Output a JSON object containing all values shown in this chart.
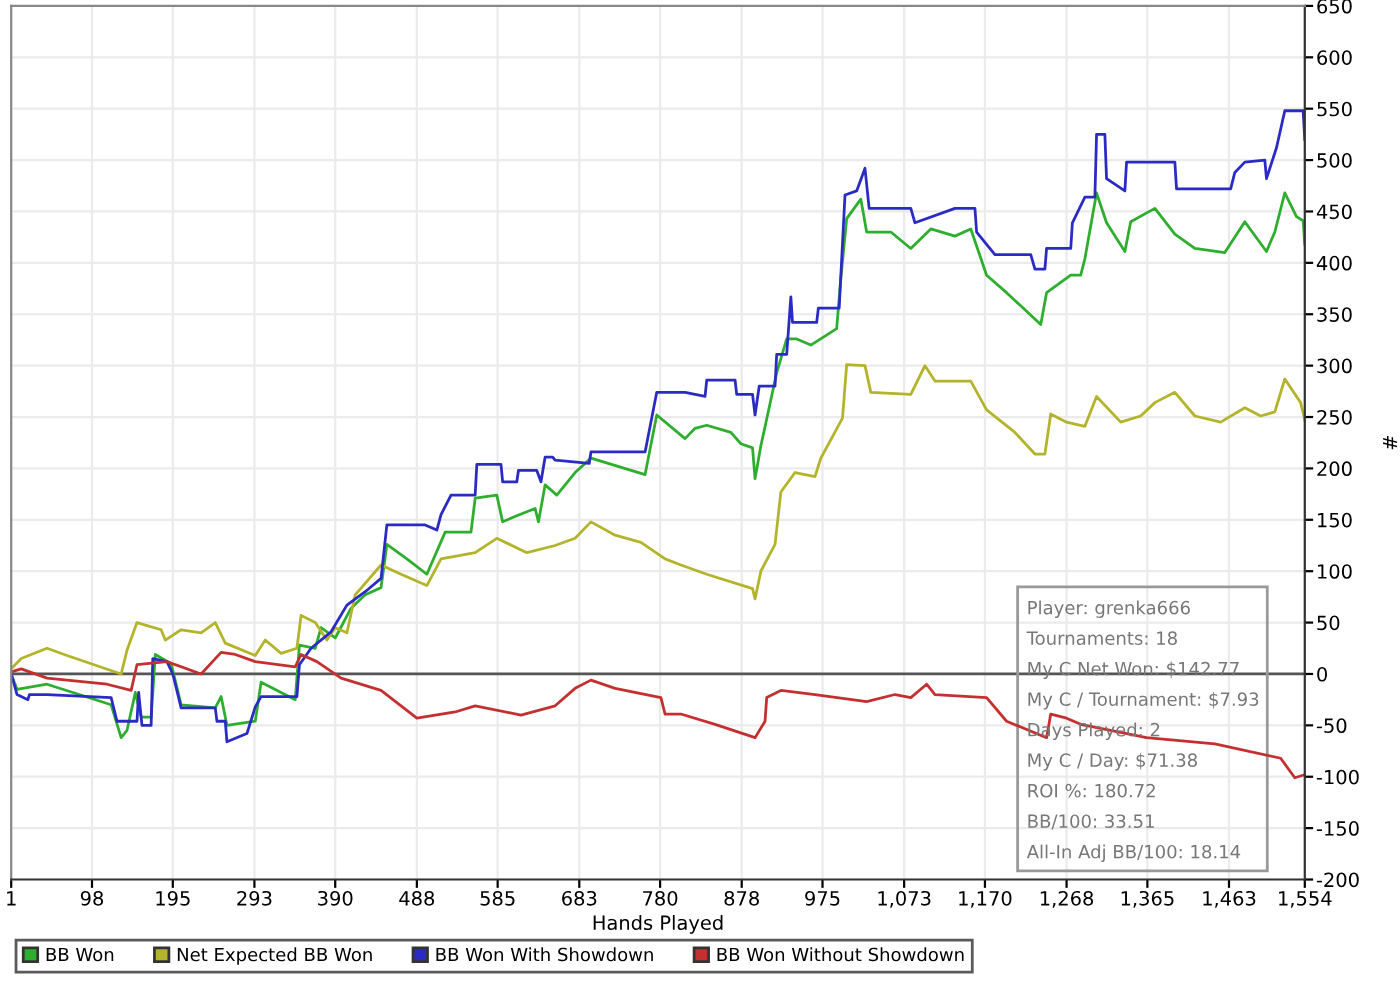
{
  "chart_data": {
    "type": "line",
    "xlabel": "Hands Played",
    "ylabel": "#",
    "xlim": [
      1,
      1554
    ],
    "ylim": [
      -200,
      650
    ],
    "xticks": [
      1,
      98,
      195,
      293,
      390,
      488,
      585,
      683,
      780,
      878,
      975,
      {
        "value": 1073,
        "label": "1,073"
      },
      {
        "value": 1170,
        "label": "1,170"
      },
      {
        "value": 1268,
        "label": "1,268"
      },
      {
        "value": 1365,
        "label": "1,365"
      },
      {
        "value": 1463,
        "label": "1,463"
      },
      {
        "value": 1554,
        "label": "1,554"
      }
    ],
    "yticks": [
      -200,
      -150,
      -100,
      -50,
      0,
      50,
      100,
      150,
      200,
      250,
      300,
      350,
      400,
      450,
      500,
      550,
      600,
      650
    ],
    "grid": true,
    "legend": "bottom",
    "marker": "none",
    "line_style": "solid",
    "ref_lines": [
      {
        "axis": "y",
        "value": 0,
        "color": "#555555"
      }
    ],
    "annotations": [
      "Player: grenka666",
      "Tournaments: 18",
      "My C Net Won: $142.77",
      "My C / Tournament: $7.93",
      "Days Played: 2",
      "My C / Day: $71.38",
      "ROI %: 180.72",
      "BB/100: 33.51",
      "All-In Adj BB/100: 18.14"
    ],
    "series": [
      {
        "name": "BB Won",
        "color": "#2eae2e",
        "x": [
          1,
          8,
          44,
          121,
          133,
          140,
          150,
          157,
          169,
          174,
          193,
          205,
          246,
          253,
          260,
          294,
          301,
          342,
          347,
          366,
          373,
          390,
          409,
          426,
          445,
          452,
          476,
          500,
          522,
          553,
          558,
          584,
          591,
          608,
          630,
          634,
          642,
          656,
          678,
          697,
          762,
          776,
          810,
          822,
          836,
          865,
          877,
          891,
          894,
          901,
          908,
          920,
          932,
          944,
          961,
          992,
          997,
          1004,
          1021,
          1028,
          1057,
          1081,
          1105,
          1134,
          1153,
          1172,
          1196,
          1237,
          1244,
          1273,
          1285,
          1290,
          1304,
          1316,
          1338,
          1345,
          1374,
          1398,
          1422,
          1458,
          1482,
          1508,
          1518,
          1530,
          1544,
          1552,
          1554
        ],
        "values": [
          0,
          -15,
          -10,
          -30,
          -62,
          -55,
          -18,
          -42,
          -42,
          19,
          10,
          -30,
          -33,
          -22,
          -50,
          -46,
          -8,
          -25,
          28,
          25,
          45,
          35,
          64,
          77,
          84,
          126,
          112,
          97,
          138,
          138,
          171,
          174,
          148,
          154,
          161,
          148,
          184,
          174,
          196,
          210,
          194,
          252,
          229,
          239,
          242,
          235,
          224,
          220,
          190,
          222,
          248,
          293,
          326,
          326,
          320,
          336,
          385,
          443,
          462,
          430,
          430,
          414,
          433,
          426,
          433,
          388,
          371,
          340,
          371,
          388,
          388,
          404,
          468,
          439,
          411,
          440,
          453,
          428,
          414,
          410,
          440,
          411,
          430,
          468,
          445,
          441,
          418
        ]
      },
      {
        "name": "Net Expected BB Won",
        "color": "#b4b42c",
        "x": [
          1,
          13,
          44,
          68,
          133,
          140,
          152,
          181,
          186,
          205,
          229,
          246,
          258,
          294,
          306,
          325,
          344,
          349,
          366,
          380,
          390,
          404,
          414,
          445,
          469,
          500,
          517,
          558,
          584,
          620,
          654,
          678,
          697,
          726,
          757,
          786,
          805,
          836,
          891,
          894,
          901,
          918,
          925,
          942,
          966,
          973,
          999,
          1004,
          1026,
          1033,
          1081,
          1098,
          1110,
          1153,
          1172,
          1206,
          1230,
          1242,
          1249,
          1268,
          1290,
          1304,
          1333,
          1357,
          1374,
          1398,
          1422,
          1453,
          1482,
          1501,
          1518,
          1530,
          1549,
          1554
        ],
        "values": [
          5,
          15,
          25,
          18,
          0,
          23,
          50,
          43,
          33,
          43,
          40,
          50,
          30,
          18,
          33,
          20,
          25,
          57,
          50,
          33,
          45,
          40,
          77,
          106,
          97,
          86,
          112,
          118,
          132,
          118,
          125,
          132,
          148,
          135,
          128,
          112,
          106,
          97,
          83,
          73,
          100,
          126,
          177,
          196,
          192,
          210,
          249,
          301,
          300,
          274,
          272,
          300,
          285,
          285,
          257,
          235,
          214,
          214,
          253,
          245,
          241,
          270,
          245,
          251,
          264,
          274,
          251,
          245,
          259,
          251,
          255,
          287,
          264,
          247
        ]
      },
      {
        "name": "BB Won With Showdown",
        "color": "#2b2bc4",
        "x": [
          1,
          8,
          21,
          23,
          44,
          121,
          128,
          152,
          154,
          158,
          169,
          171,
          188,
          195,
          205,
          246,
          248,
          258,
          260,
          284,
          294,
          301,
          344,
          347,
          361,
          385,
          404,
          426,
          445,
          452,
          498,
          512,
          517,
          529,
          558,
          560,
          589,
          591,
          608,
          610,
          632,
          637,
          642,
          651,
          654,
          695,
          697,
          762,
          776,
          810,
          834,
          836,
          870,
          872,
          891,
          894,
          899,
          918,
          920,
          932,
          937,
          939,
          968,
          970,
          995,
          1002,
          1016,
          1026,
          1031,
          1081,
          1086,
          1134,
          1158,
          1160,
          1182,
          1225,
          1230,
          1242,
          1244,
          1273,
          1275,
          1290,
          1302,
          1304,
          1314,
          1316,
          1338,
          1340,
          1398,
          1400,
          1465,
          1470,
          1482,
          1506,
          1508,
          1520,
          1530,
          1552,
          1554
        ],
        "values": [
          0,
          -20,
          -25,
          -20,
          -20,
          -23,
          -46,
          -46,
          -18,
          -50,
          -50,
          15,
          12,
          0,
          -33,
          -33,
          -46,
          -46,
          -66,
          -58,
          -32,
          -22,
          -22,
          9,
          25,
          41,
          67,
          80,
          93,
          145,
          145,
          140,
          155,
          174,
          174,
          204,
          204,
          187,
          187,
          198,
          198,
          187,
          211,
          211,
          208,
          205,
          216,
          216,
          274,
          274,
          270,
          286,
          286,
          272,
          272,
          252,
          280,
          280,
          311,
          311,
          367,
          342,
          342,
          356,
          356,
          466,
          470,
          492,
          453,
          453,
          439,
          453,
          453,
          430,
          408,
          408,
          394,
          394,
          414,
          414,
          439,
          464,
          464,
          525,
          525,
          482,
          470,
          498,
          498,
          472,
          472,
          488,
          498,
          500,
          482,
          512,
          548,
          548,
          520
        ]
      },
      {
        "name": "BB Won Without Showdown",
        "color": "#c43030",
        "x": [
          1,
          13,
          44,
          116,
          145,
          152,
          188,
          229,
          253,
          270,
          294,
          342,
          349,
          368,
          397,
          445,
          488,
          534,
          558,
          613,
          654,
          678,
          697,
          726,
          781,
          786,
          805,
          846,
          894,
          906,
          908,
          925,
          966,
          1028,
          1062,
          1081,
          1100,
          1110,
          1172,
          1196,
          1244,
          1249,
          1268,
          1285,
          1364,
          1446,
          1525,
          1542,
          1554
        ],
        "values": [
          2,
          5,
          -4,
          -10,
          -16,
          9,
          12,
          0,
          21,
          19,
          12,
          7,
          19,
          12,
          -4,
          -16,
          -43,
          -37,
          -31,
          -40,
          -31,
          -14,
          -6,
          -14,
          -23,
          -39,
          -39,
          -49,
          -62,
          -46,
          -23,
          -16,
          -20,
          -27,
          -20,
          -23,
          -10,
          -20,
          -23,
          -46,
          -62,
          -39,
          -43,
          -49,
          -62,
          -68,
          -82,
          -101,
          -98
        ]
      }
    ]
  }
}
